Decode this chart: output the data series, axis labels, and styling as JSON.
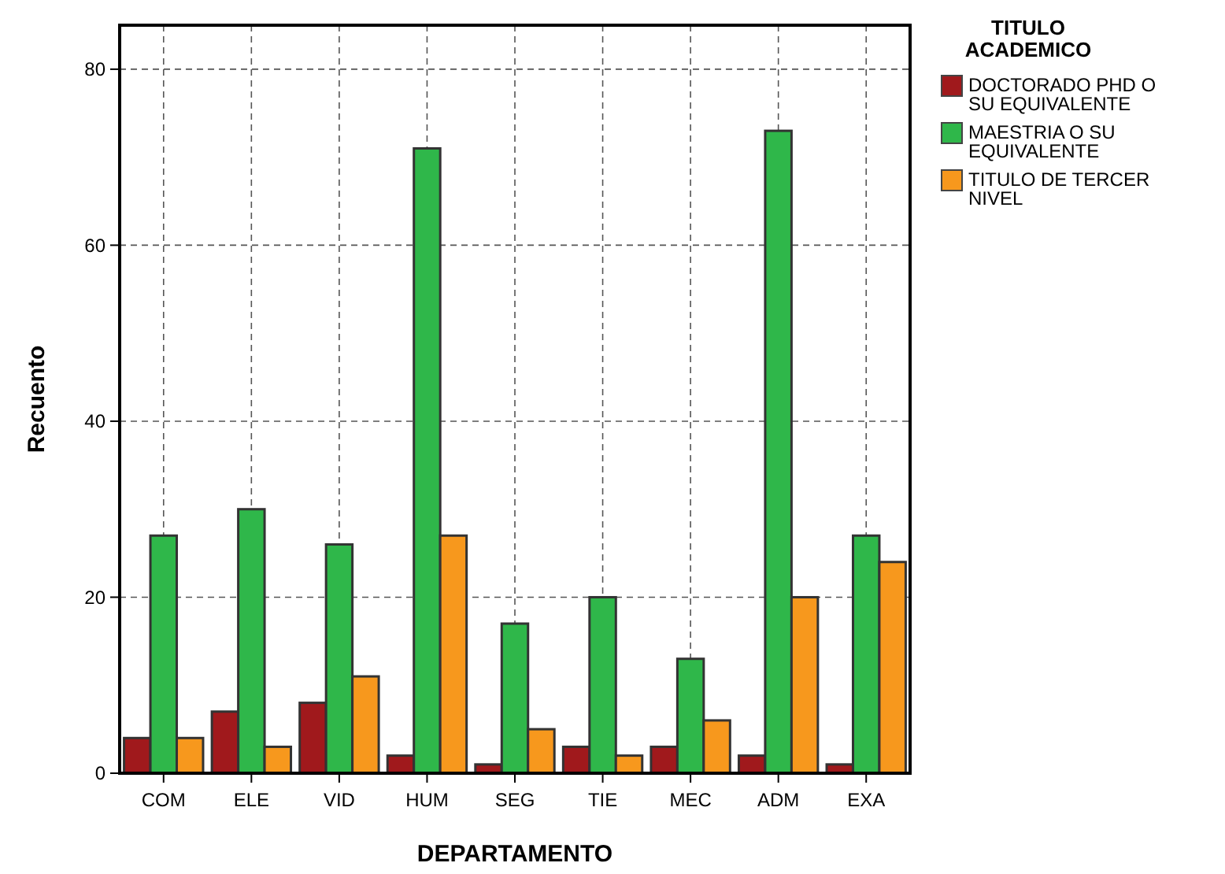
{
  "chart_data": {
    "type": "bar",
    "xlabel": "DEPARTAMENTO",
    "ylabel": "Recuento",
    "legend_title": "TITULO ACADEMICO",
    "categories": [
      "COM",
      "ELE",
      "VID",
      "HUM",
      "SEG",
      "TIE",
      "MEC",
      "ADM",
      "EXA"
    ],
    "series": [
      {
        "name": "DOCTORADO PHD O SU EQUIVALENTE",
        "color": "#a0191c",
        "values": [
          4,
          7,
          8,
          2,
          1,
          3,
          3,
          2,
          1
        ]
      },
      {
        "name": "MAESTRIA O SU EQUIVALENTE",
        "color": "#2fb74a",
        "values": [
          27,
          30,
          26,
          71,
          17,
          20,
          13,
          73,
          27
        ]
      },
      {
        "name": "TITULO DE TERCER NIVEL",
        "color": "#f7981d",
        "values": [
          4,
          3,
          11,
          27,
          5,
          2,
          6,
          20,
          24
        ]
      }
    ],
    "ylim": [
      0,
      85
    ],
    "yticks": [
      0,
      20,
      40,
      60,
      80
    ],
    "grid": true,
    "legend": "right"
  }
}
